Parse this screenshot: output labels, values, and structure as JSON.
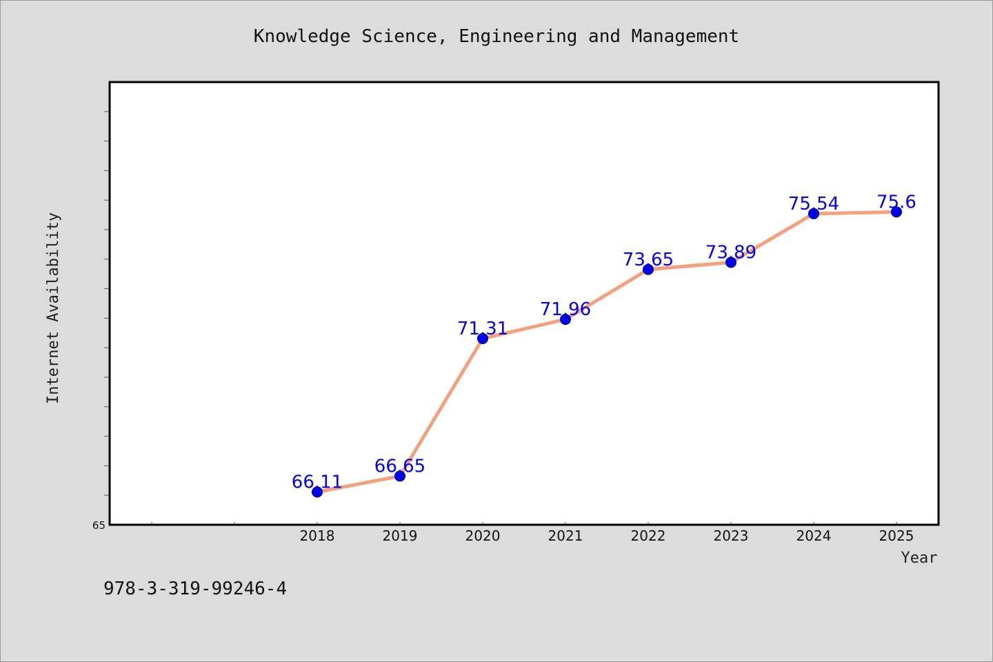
{
  "chart_data": {
    "type": "line",
    "title": "Knowledge Science, Engineering and Management",
    "xlabel": "Year",
    "ylabel": "Internet Availability",
    "categories": [
      "2018",
      "2019",
      "2020",
      "2021",
      "2022",
      "2023",
      "2024",
      "2025"
    ],
    "series": [
      {
        "values": [
          66.11,
          66.65,
          71.31,
          71.96,
          73.65,
          73.89,
          75.54,
          75.6
        ],
        "labels": [
          "66.11",
          "66.65",
          "71.31",
          "71.96",
          "73.65",
          "73.89",
          "75.54",
          "75.6"
        ]
      }
    ],
    "ylim": [
      65,
      80
    ],
    "y_tick_labels": [
      "65"
    ],
    "grid": false,
    "legend": "none",
    "colors": {
      "line": "#f4a07c",
      "marker": "#0000ee",
      "data_label": "#0000ee",
      "plot_background": "#ffffff",
      "page_background": "#dcdcdc"
    }
  },
  "footer": {
    "isbn": "978-3-319-99246-4"
  }
}
